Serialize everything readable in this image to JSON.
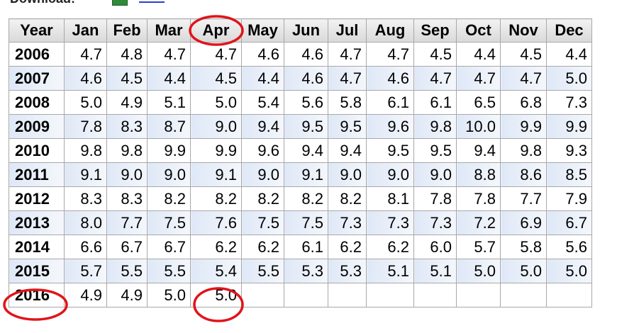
{
  "header": {
    "download": "Download:"
  },
  "table": {
    "columns": [
      "Year",
      "Jan",
      "Feb",
      "Mar",
      "Apr",
      "May",
      "Jun",
      "Jul",
      "Aug",
      "Sep",
      "Oct",
      "Nov",
      "Dec"
    ],
    "rows": [
      [
        "2006",
        "4.7",
        "4.8",
        "4.7",
        "4.7",
        "4.6",
        "4.6",
        "4.7",
        "4.7",
        "4.5",
        "4.4",
        "4.5",
        "4.4"
      ],
      [
        "2007",
        "4.6",
        "4.5",
        "4.4",
        "4.5",
        "4.4",
        "4.6",
        "4.7",
        "4.6",
        "4.7",
        "4.7",
        "4.7",
        "5.0"
      ],
      [
        "2008",
        "5.0",
        "4.9",
        "5.1",
        "5.0",
        "5.4",
        "5.6",
        "5.8",
        "6.1",
        "6.1",
        "6.5",
        "6.8",
        "7.3"
      ],
      [
        "2009",
        "7.8",
        "8.3",
        "8.7",
        "9.0",
        "9.4",
        "9.5",
        "9.5",
        "9.6",
        "9.8",
        "10.0",
        "9.9",
        "9.9"
      ],
      [
        "2010",
        "9.8",
        "9.8",
        "9.9",
        "9.9",
        "9.6",
        "9.4",
        "9.4",
        "9.5",
        "9.5",
        "9.4",
        "9.8",
        "9.3"
      ],
      [
        "2011",
        "9.1",
        "9.0",
        "9.0",
        "9.1",
        "9.0",
        "9.1",
        "9.0",
        "9.0",
        "9.0",
        "8.8",
        "8.6",
        "8.5"
      ],
      [
        "2012",
        "8.3",
        "8.3",
        "8.2",
        "8.2",
        "8.2",
        "8.2",
        "8.2",
        "8.1",
        "7.8",
        "7.8",
        "7.7",
        "7.9"
      ],
      [
        "2013",
        "8.0",
        "7.7",
        "7.5",
        "7.6",
        "7.5",
        "7.5",
        "7.3",
        "7.3",
        "7.3",
        "7.2",
        "6.9",
        "6.7"
      ],
      [
        "2014",
        "6.6",
        "6.7",
        "6.7",
        "6.2",
        "6.2",
        "6.1",
        "6.2",
        "6.2",
        "6.0",
        "5.7",
        "5.8",
        "5.6"
      ],
      [
        "2015",
        "5.7",
        "5.5",
        "5.5",
        "5.4",
        "5.5",
        "5.3",
        "5.3",
        "5.1",
        "5.1",
        "5.0",
        "5.0",
        "5.0"
      ],
      [
        "2016",
        "4.9",
        "4.9",
        "5.0",
        "5.0"
      ]
    ]
  }
}
